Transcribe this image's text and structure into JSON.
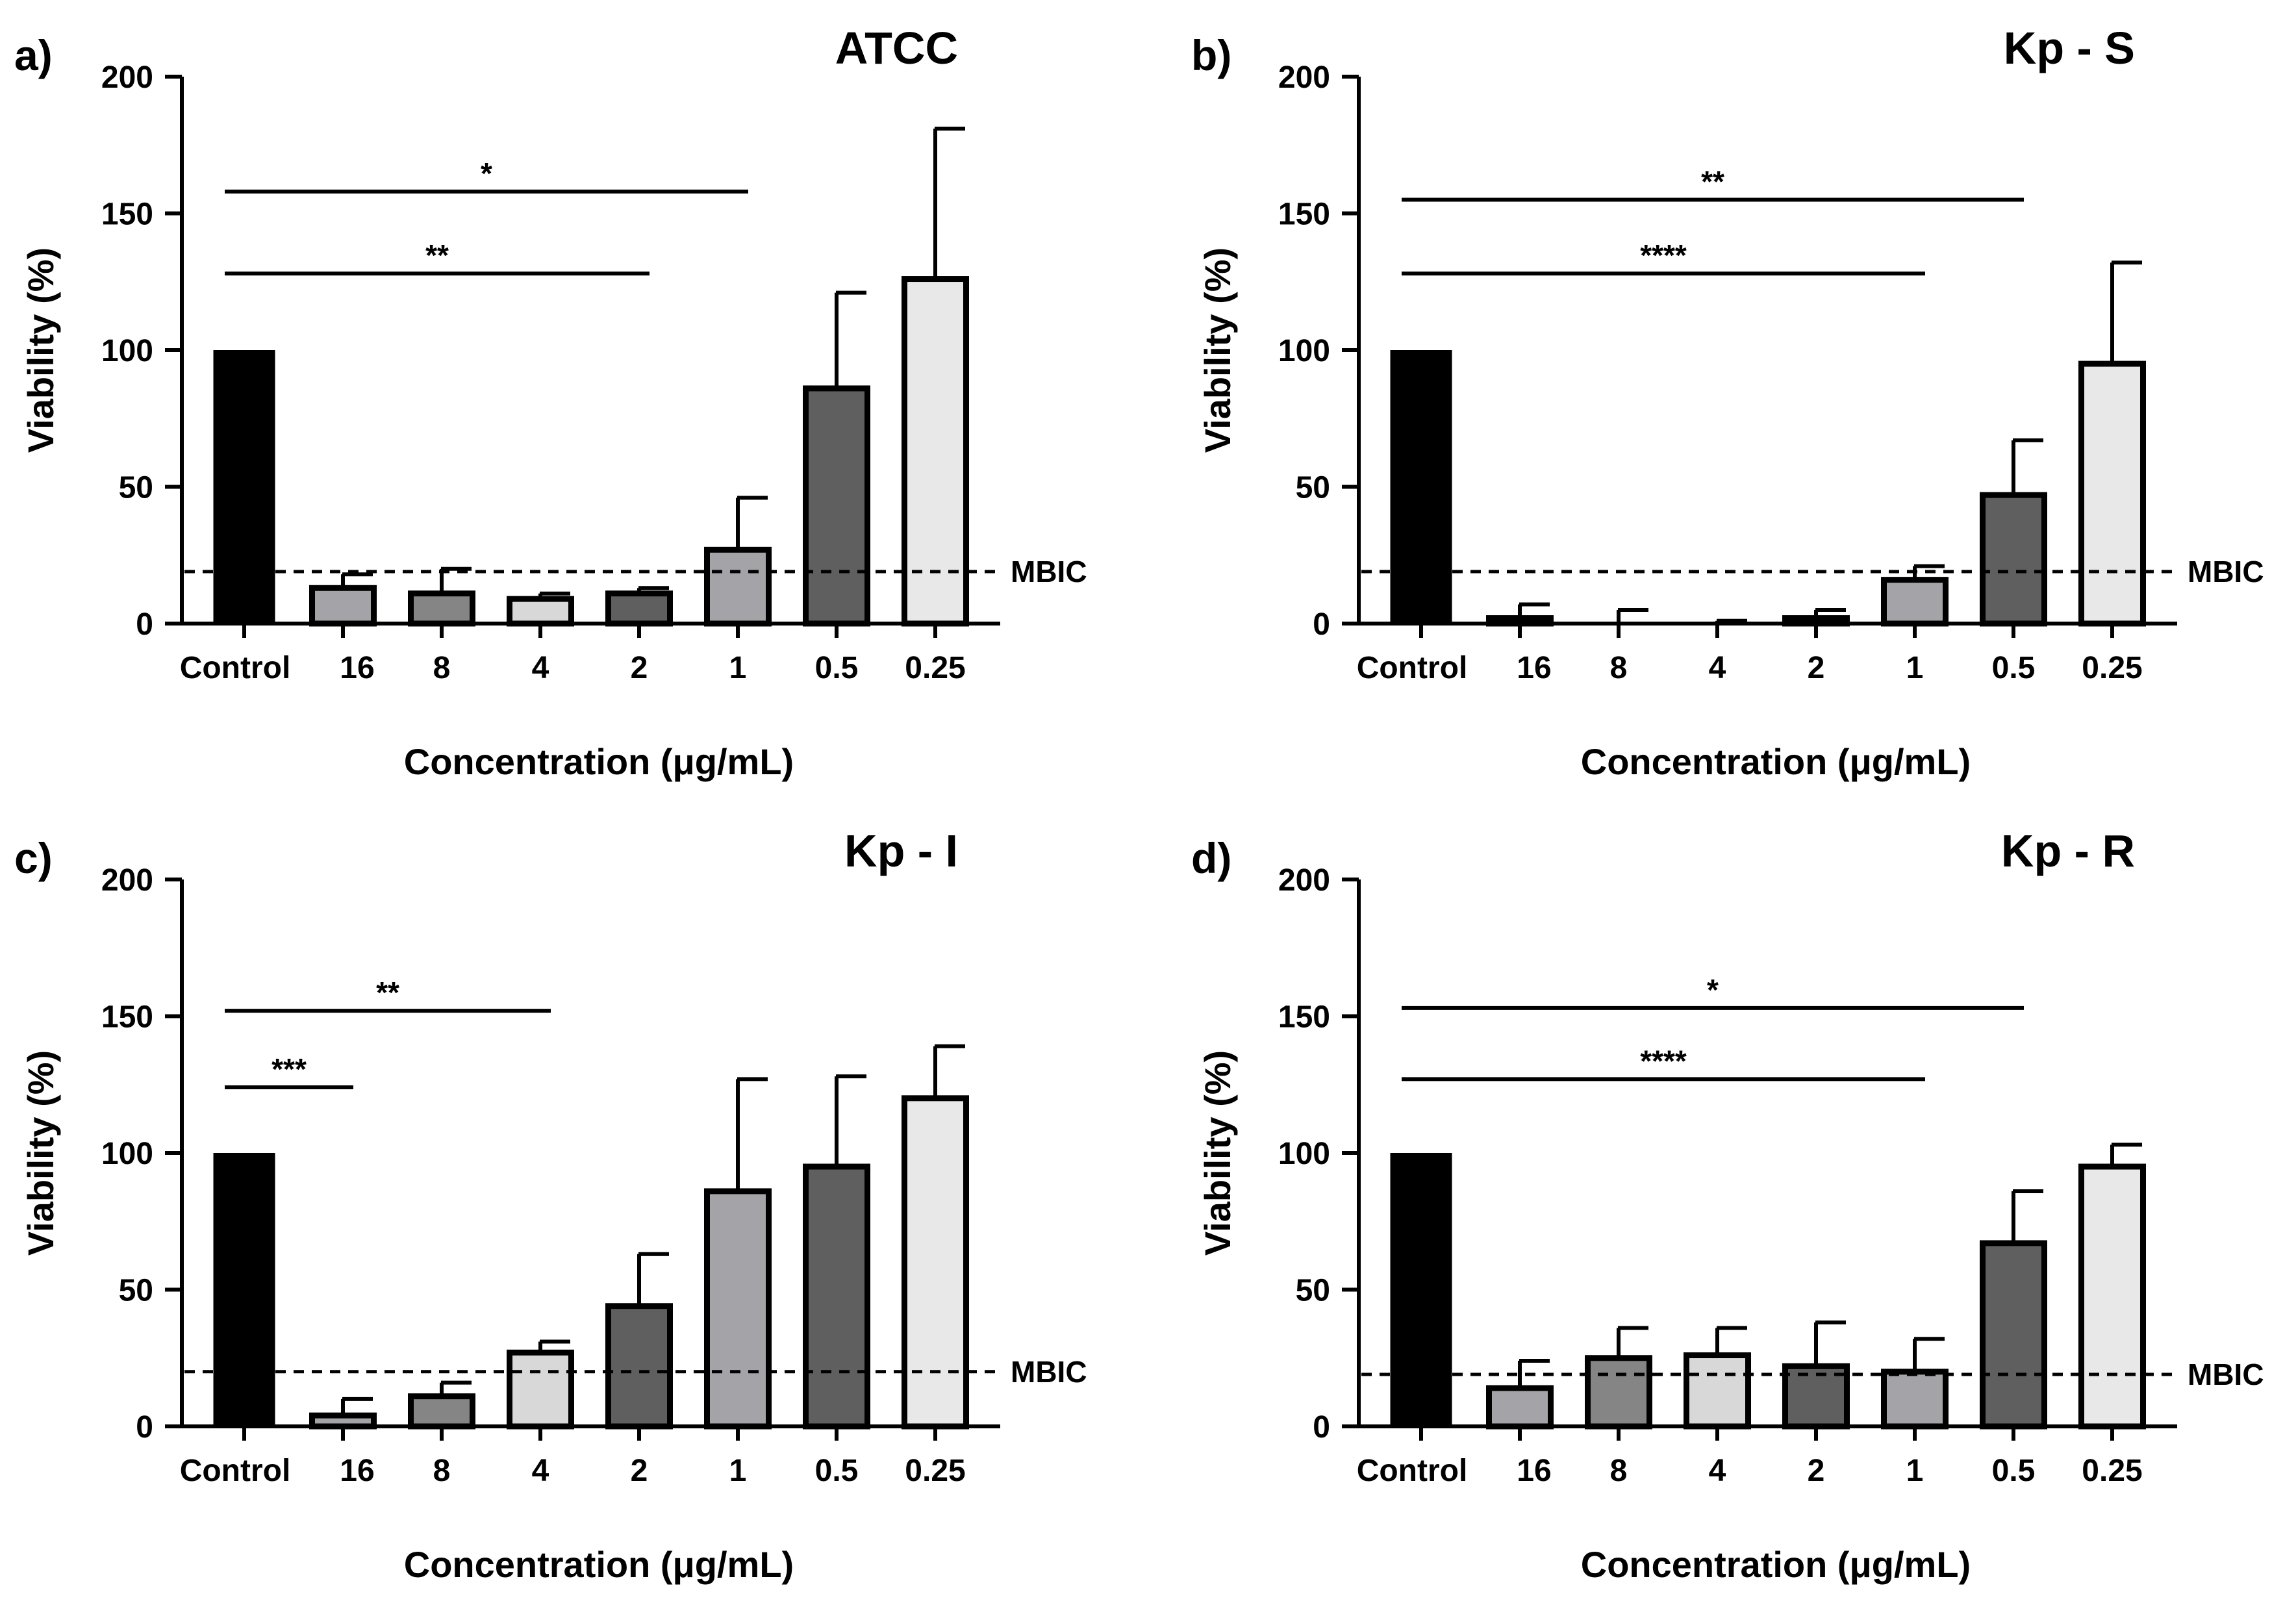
{
  "colors": {
    "control": "#000000",
    "bar_light_gray": "#a4a4a8",
    "bar_mid_gray": "#858585",
    "bar_pale_gray": "#d8d8d8",
    "bar_dark_gray": "#5f5f5f",
    "bar_lightest_gray": "#e8e8e8",
    "outline": "#000000"
  },
  "chart_data": [
    {
      "type": "bar",
      "panel_label": "a)",
      "title": "ATCC",
      "xlabel": "Concentration (μg/mL)",
      "ylabel": "Viability (%)",
      "ylim": [
        0,
        200
      ],
      "yticks": [
        "0",
        "50",
        "100",
        "150",
        "200"
      ],
      "categories": [
        "Control",
        "16",
        "8",
        "4",
        "2",
        "1",
        "0.5",
        "0.25"
      ],
      "values": [
        100,
        13,
        11,
        9,
        11,
        27,
        86,
        126
      ],
      "errors": [
        0,
        5,
        9,
        2,
        2,
        19,
        35,
        55
      ],
      "mbic": {
        "value": 19,
        "label": "MBIC"
      },
      "significance": [
        {
          "from": "Control",
          "to": "1",
          "label": "*",
          "y": 158
        },
        {
          "from": "Control",
          "to": "2",
          "label": "**",
          "y": 128
        }
      ]
    },
    {
      "type": "bar",
      "panel_label": "b)",
      "title": "Kp - S",
      "xlabel": "Concentration (μg/mL)",
      "ylabel": "Viability (%)",
      "ylim": [
        0,
        200
      ],
      "yticks": [
        "0",
        "50",
        "100",
        "150",
        "200"
      ],
      "categories": [
        "Control",
        "16",
        "8",
        "4",
        "2",
        "1",
        "0.5",
        "0.25"
      ],
      "values": [
        100,
        2,
        0,
        0,
        2,
        16,
        47,
        95
      ],
      "errors": [
        0,
        5,
        5,
        1,
        3,
        5,
        20,
        37
      ],
      "mbic": {
        "value": 19,
        "label": "MBIC"
      },
      "significance": [
        {
          "from": "Control",
          "to": "0.5",
          "label": "**",
          "y": 155
        },
        {
          "from": "Control",
          "to": "1",
          "label": "****",
          "y": 128
        }
      ]
    },
    {
      "type": "bar",
      "panel_label": "c)",
      "title": "Kp - I",
      "xlabel": "Concentration (μg/mL)",
      "ylabel": "Viability (%)",
      "ylim": [
        0,
        200
      ],
      "yticks": [
        "0",
        "50",
        "100",
        "150",
        "200"
      ],
      "categories": [
        "Control",
        "16",
        "8",
        "4",
        "2",
        "1",
        "0.5",
        "0.25"
      ],
      "values": [
        100,
        4,
        11,
        27,
        44,
        86,
        95,
        120
      ],
      "errors": [
        0,
        6,
        5,
        4,
        19,
        41,
        33,
        19
      ],
      "mbic": {
        "value": 20,
        "label": "MBIC"
      },
      "significance": [
        {
          "from": "Control",
          "to": "4",
          "label": "**",
          "y": 152
        },
        {
          "from": "Control",
          "to": "16",
          "label": "***",
          "y": 124
        }
      ]
    },
    {
      "type": "bar",
      "panel_label": "d)",
      "title": "Kp - R",
      "xlabel": "Concentration (μg/mL)",
      "ylabel": "Viability (%)",
      "ylim": [
        0,
        200
      ],
      "yticks": [
        "0",
        "50",
        "100",
        "150",
        "200"
      ],
      "categories": [
        "Control",
        "16",
        "8",
        "4",
        "2",
        "1",
        "0.5",
        "0.25"
      ],
      "values": [
        100,
        14,
        25,
        26,
        22,
        20,
        67,
        95
      ],
      "errors": [
        0,
        10,
        11,
        10,
        16,
        12,
        19,
        8
      ],
      "mbic": {
        "value": 19,
        "label": "MBIC"
      },
      "significance": [
        {
          "from": "Control",
          "to": "0.5",
          "label": "*",
          "y": 153
        },
        {
          "from": "Control",
          "to": "1",
          "label": "****",
          "y": 127
        }
      ]
    }
  ]
}
